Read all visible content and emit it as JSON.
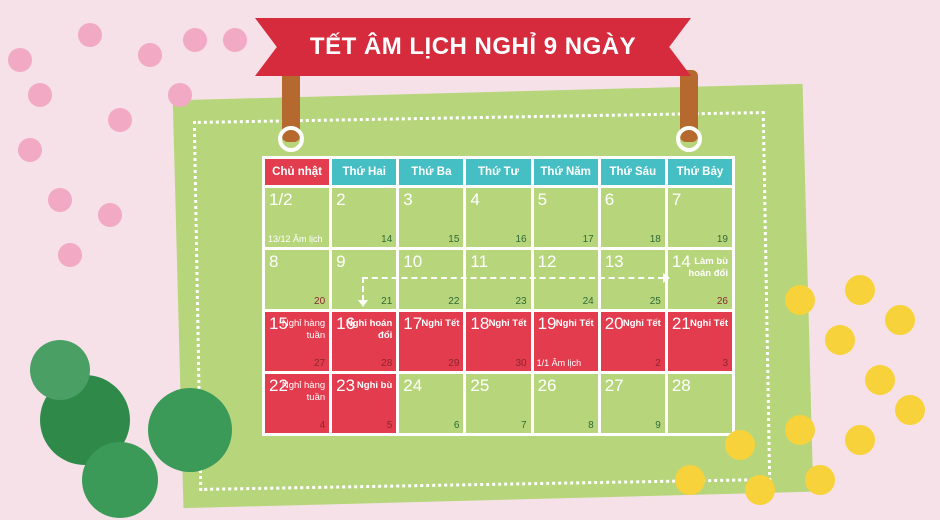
{
  "title": "TẾT ÂM LỊCH NGHỈ 9 NGÀY",
  "weekdays": [
    "Chủ nhật",
    "Thứ Hai",
    "Thứ Ba",
    "Thứ Tư",
    "Thứ Năm",
    "Thứ Sáu",
    "Thứ Bảy"
  ],
  "colors": {
    "holiday": "#e23c4e",
    "workday": "#b7d67c",
    "header": "#46bfc4",
    "banner": "#d62b3c"
  },
  "days": [
    {
      "day": "1/2",
      "lunar": "",
      "lunar_note": "13/12 Âm lịch",
      "holiday": false
    },
    {
      "day": "2",
      "lunar": "14",
      "holiday": false
    },
    {
      "day": "3",
      "lunar": "15",
      "holiday": false
    },
    {
      "day": "4",
      "lunar": "16",
      "holiday": false
    },
    {
      "day": "5",
      "lunar": "17",
      "holiday": false
    },
    {
      "day": "6",
      "lunar": "18",
      "holiday": false
    },
    {
      "day": "7",
      "lunar": "19",
      "holiday": false
    },
    {
      "day": "8",
      "lunar": "20",
      "holiday": false,
      "dark": true
    },
    {
      "day": "9",
      "lunar": "21",
      "holiday": false
    },
    {
      "day": "10",
      "lunar": "22",
      "holiday": false
    },
    {
      "day": "11",
      "lunar": "23",
      "holiday": false
    },
    {
      "day": "12",
      "lunar": "24",
      "holiday": false
    },
    {
      "day": "13",
      "lunar": "25",
      "holiday": false
    },
    {
      "day": "14",
      "lunar": "26",
      "note": "Làm bù hoán đổi",
      "holiday": false,
      "dark": true
    },
    {
      "day": "15",
      "lunar": "27",
      "note": "Nghỉ hàng tuần",
      "light": true,
      "holiday": true
    },
    {
      "day": "16",
      "lunar": "28",
      "note": "Nghỉ hoán đổi",
      "holiday": true
    },
    {
      "day": "17",
      "lunar": "29",
      "note": "Nghỉ Tết",
      "holiday": true
    },
    {
      "day": "18",
      "lunar": "30",
      "note": "Nghỉ Tết",
      "holiday": true
    },
    {
      "day": "19",
      "lunar": "",
      "lunar_note": "1/1 Âm lịch",
      "note": "Nghỉ Tết",
      "holiday": true
    },
    {
      "day": "20",
      "lunar": "2",
      "note": "Nghỉ Tết",
      "holiday": true
    },
    {
      "day": "21",
      "lunar": "3",
      "note": "Nghỉ Tết",
      "holiday": true
    },
    {
      "day": "22",
      "lunar": "4",
      "note": "Nghỉ hàng tuần",
      "light": true,
      "holiday": true
    },
    {
      "day": "23",
      "lunar": "5",
      "note": "Nghỉ bù",
      "holiday": true
    },
    {
      "day": "24",
      "lunar": "6",
      "holiday": false
    },
    {
      "day": "25",
      "lunar": "7",
      "holiday": false
    },
    {
      "day": "26",
      "lunar": "8",
      "holiday": false
    },
    {
      "day": "27",
      "lunar": "9",
      "holiday": false
    },
    {
      "day": "28",
      "lunar": "",
      "holiday": false
    }
  ]
}
